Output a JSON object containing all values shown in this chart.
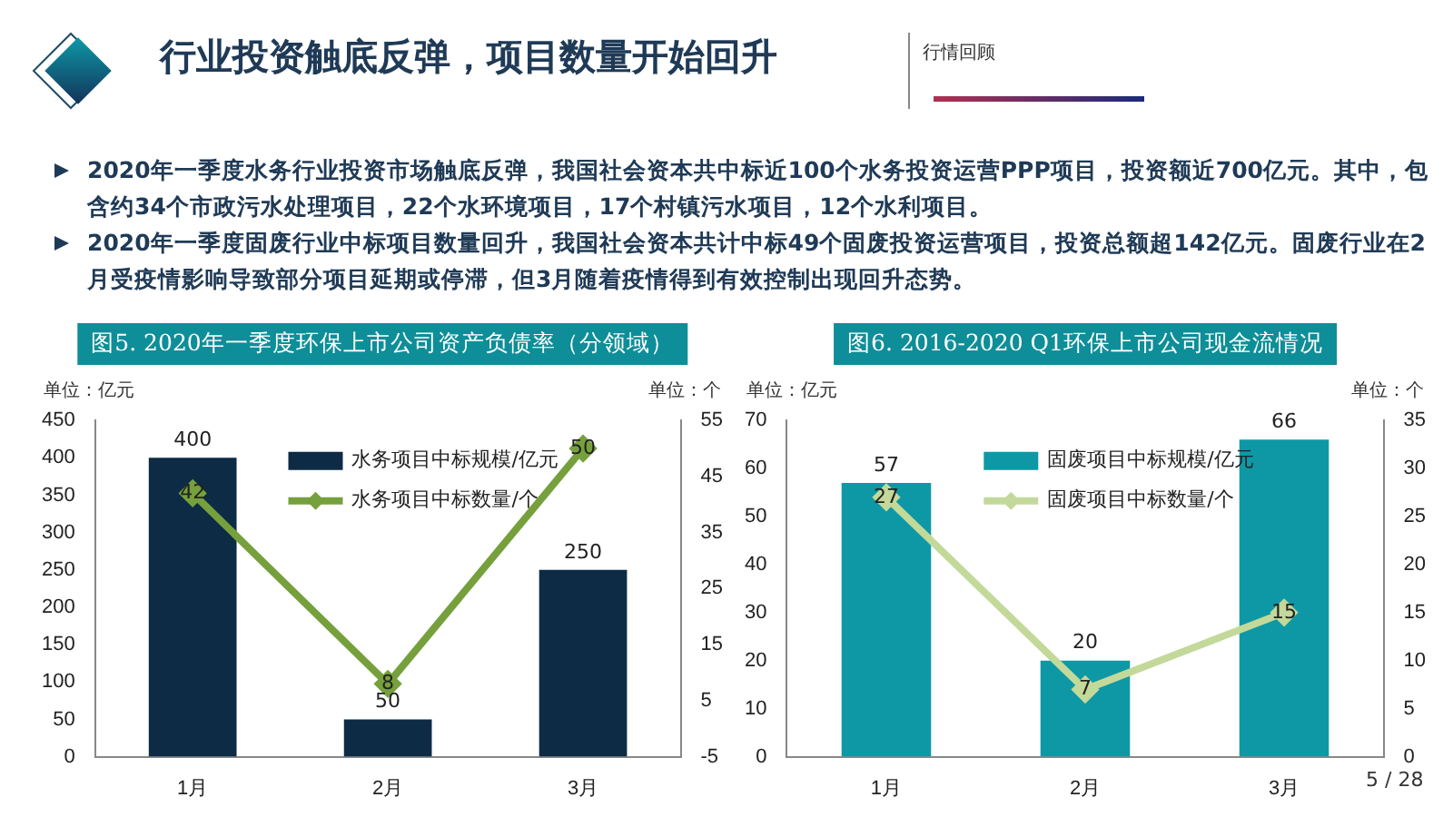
{
  "chart_data": [
    {
      "type": "other",
      "title": "行业投资触底反弹，项目数量开始回升",
      "annotations": [
        "行情回顾",
        "2020年一季度水务行业投资市场触底反弹，我国社会资本共中标近100个水务投资运营PPP项目，投资额近700亿元。其中，包含约34个市政污水处理项目，22个水环境项目，17个村镇污水项目，12个水利项目。",
        "2020年一季度固废行业中标项目数量回升，我国社会资本共计中标49个固废投资运营项目，投资总额超142亿元。固废行业在2月受疫情影响导致部分项目延期或停滞，但3月随着疫情得到有效控制出现回升态势。",
        "5 / 28"
      ]
    },
    {
      "type": "bar",
      "title": "图5. 2020年一季度环保上市公司资产负债率（分领域）",
      "ylabel": "单位：亿元",
      "y2label": "单位：个",
      "categories": [
        "1月",
        "2月",
        "3月"
      ],
      "series": [
        {
          "name": "水务项目中标规模/亿元",
          "color": "#0d2b45",
          "values": [
            400,
            50,
            250
          ]
        },
        {
          "name": "水务项目中标数量/个",
          "type": "line",
          "axis": "y2",
          "color": "#76a03c",
          "values": [
            42,
            8,
            50
          ]
        }
      ],
      "ylim": [
        0,
        450
      ],
      "yticks": [
        0,
        50,
        100,
        150,
        200,
        250,
        300,
        350,
        400,
        450
      ],
      "y2lim": [
        -5,
        55
      ],
      "y2ticks": [
        -5,
        5,
        15,
        25,
        35,
        45,
        55
      ],
      "legend": "top",
      "marker": "diamond",
      "data_labels": true
    },
    {
      "type": "bar",
      "title": "图6. 2016-2020 Q1环保上市公司现金流情况",
      "ylabel": "单位：亿元",
      "y2label": "单位：个",
      "categories": [
        "1月",
        "2月",
        "3月"
      ],
      "series": [
        {
          "name": "固废项目中标规模/亿元",
          "color": "#0e98a6",
          "values": [
            57,
            20,
            66
          ]
        },
        {
          "name": "固废项目中标数量/个",
          "type": "line",
          "axis": "y2",
          "color": "#c3d99a",
          "values": [
            27,
            7,
            15
          ]
        }
      ],
      "ylim": [
        0,
        70
      ],
      "yticks": [
        0,
        10,
        20,
        30,
        40,
        50,
        60,
        70
      ],
      "y2lim": [
        0,
        35
      ],
      "y2ticks": [
        0,
        5,
        10,
        15,
        20,
        25,
        30,
        35
      ],
      "legend": "top",
      "marker": "diamond",
      "data_labels": true
    }
  ]
}
